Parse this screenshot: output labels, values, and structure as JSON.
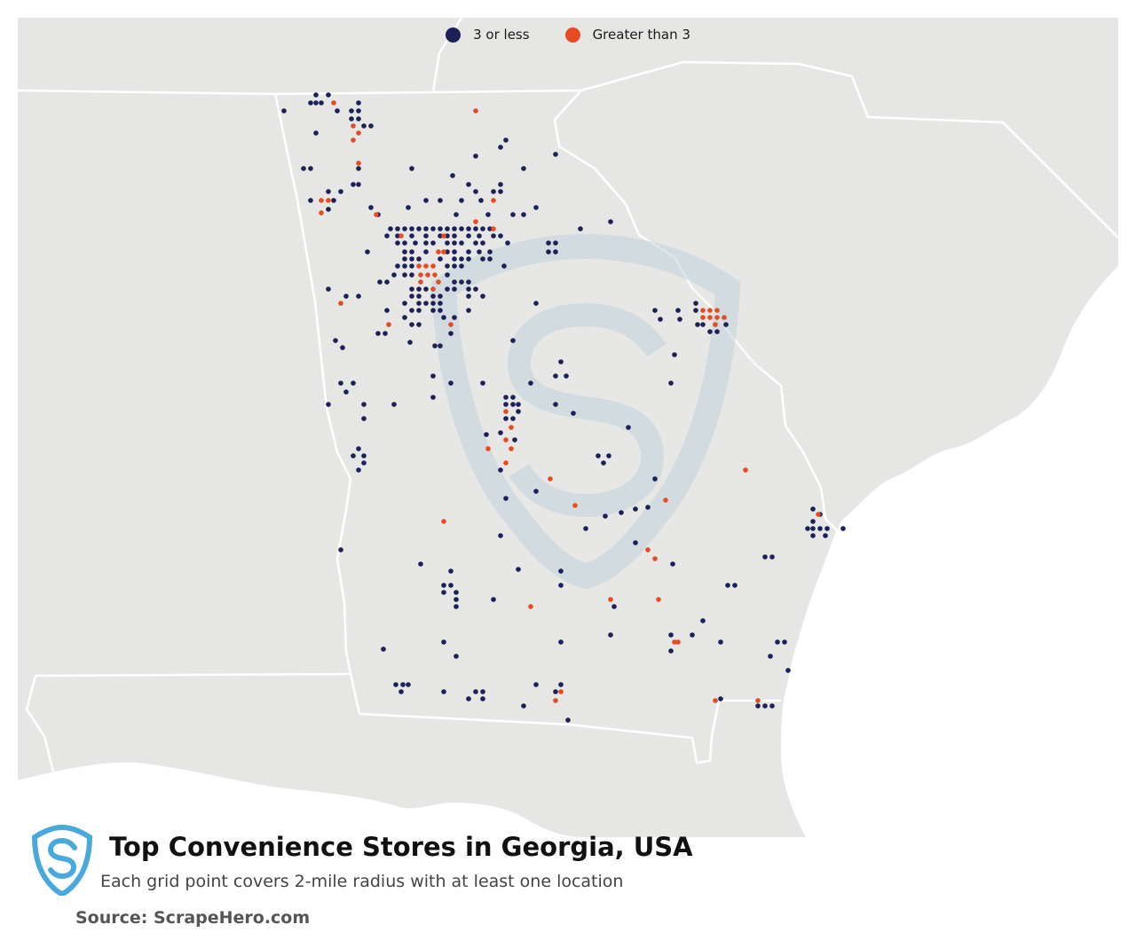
{
  "legend": {
    "items": [
      {
        "label": "3 or less",
        "color": "#1b2157"
      },
      {
        "label": "Greater than 3",
        "color": "#e84a24"
      }
    ]
  },
  "title": "Top Convenience Stores in Georgia, USA",
  "subtitle": "Each grid point covers 2-mile radius with at least one location",
  "source": "Source: ScrapeHero.com",
  "colors": {
    "land": "#e6e6e4",
    "water": "#ffffff",
    "border": "#ffffff",
    "low": "#1b2157",
    "high": "#e84a24",
    "logo": "#4aa9dc",
    "watermark": "#c9d8e2"
  }
}
